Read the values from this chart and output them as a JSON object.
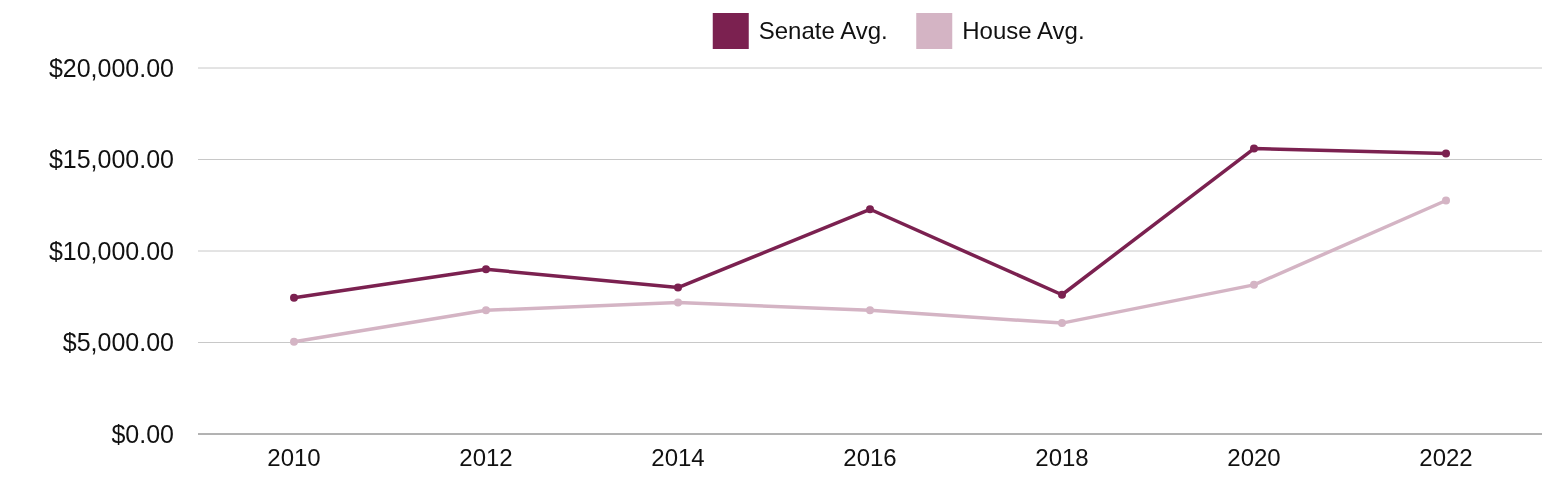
{
  "chart_data": {
    "type": "line",
    "categories": [
      "2010",
      "2012",
      "2014",
      "2016",
      "2018",
      "2020",
      "2022"
    ],
    "series": [
      {
        "name": "Senate Avg.",
        "color": "#7b2150",
        "values": [
          7450,
          9000,
          8000,
          12280,
          7610,
          15600,
          15330
        ]
      },
      {
        "name": "House Avg.",
        "color": "#d4b4c4",
        "values": [
          5040,
          6760,
          7180,
          6760,
          6060,
          8150,
          12760
        ]
      }
    ],
    "ylim": [
      0,
      20000
    ],
    "yticks": [
      {
        "value": 0,
        "label": "$0.00"
      },
      {
        "value": 5000,
        "label": "$5,000.00"
      },
      {
        "value": 10000,
        "label": "$10,000.00"
      },
      {
        "value": 15000,
        "label": "$15,000.00"
      },
      {
        "value": 20000,
        "label": "$20,000.00"
      }
    ],
    "grid": "y",
    "legend": "top",
    "marker": "circle",
    "line_style": "solid"
  }
}
